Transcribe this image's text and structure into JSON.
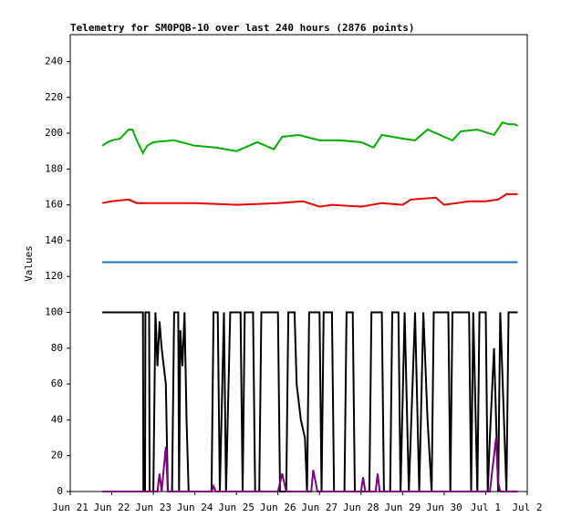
{
  "chart_data": {
    "type": "line",
    "title": "Telemetry for SM0PQB-10 over last 240 hours (2876 points)",
    "ylabel": "Values",
    "xlim": [
      0,
      11
    ],
    "ylim": [
      0,
      255
    ],
    "xticks": [
      {
        "value": 0,
        "label": "Jun 21"
      },
      {
        "value": 1,
        "label": "Jun 22"
      },
      {
        "value": 2,
        "label": "Jun 23"
      },
      {
        "value": 3,
        "label": "Jun 24"
      },
      {
        "value": 4,
        "label": "Jun 25"
      },
      {
        "value": 5,
        "label": "Jun 26"
      },
      {
        "value": 6,
        "label": "Jun 27"
      },
      {
        "value": 7,
        "label": "Jun 28"
      },
      {
        "value": 8,
        "label": "Jun 29"
      },
      {
        "value": 9,
        "label": "Jun 30"
      },
      {
        "value": 10,
        "label": "Jul 1"
      },
      {
        "value": 11,
        "label": "Jul 2"
      }
    ],
    "yticks": [
      0,
      20,
      40,
      60,
      80,
      100,
      120,
      140,
      160,
      180,
      200,
      220,
      240
    ],
    "series": [
      {
        "color": "#00b000",
        "x": [
          0.77,
          0.9,
          1.0,
          1.2,
          1.4,
          1.5,
          1.6,
          1.75,
          1.85,
          2.0,
          2.5,
          3.0,
          3.5,
          4.0,
          4.5,
          4.9,
          5.1,
          5.5,
          6.0,
          6.5,
          7.0,
          7.3,
          7.5,
          8.0,
          8.3,
          8.6,
          9.0,
          9.2,
          9.4,
          9.8,
          10.2,
          10.4,
          10.55,
          10.7,
          10.77
        ],
        "values": [
          193,
          195,
          196,
          197,
          202,
          202,
          196,
          189,
          193,
          195,
          196,
          193,
          192,
          190,
          195,
          191,
          198,
          199,
          196,
          196,
          195,
          192,
          199,
          197,
          196,
          202,
          198,
          196,
          201,
          202,
          199,
          206,
          205,
          205,
          204
        ]
      },
      {
        "color": "#ee0000",
        "x": [
          0.77,
          1.0,
          1.4,
          1.6,
          2.0,
          3.0,
          4.0,
          5.0,
          5.6,
          6.0,
          6.3,
          7.0,
          7.5,
          8.0,
          8.2,
          8.8,
          9.0,
          9.3,
          9.6,
          10.0,
          10.3,
          10.5,
          10.77
        ],
        "values": [
          161,
          162,
          163,
          161,
          161,
          161,
          160,
          161,
          162,
          159,
          160,
          159,
          161,
          160,
          163,
          164,
          160,
          161,
          162,
          162,
          163,
          166,
          166
        ]
      },
      {
        "color": "#1f6fb4",
        "x": [
          0.77,
          10.77
        ],
        "values": [
          128,
          128
        ]
      },
      {
        "color": "#000000",
        "x": [
          0.77,
          1.75,
          1.76,
          1.8,
          1.81,
          1.9,
          1.91,
          2.0,
          2.05,
          2.1,
          2.15,
          2.2,
          2.3,
          2.35,
          2.45,
          2.5,
          2.6,
          2.62,
          2.65,
          2.7,
          2.75,
          2.8,
          2.85,
          3.4,
          3.45,
          3.55,
          3.6,
          3.7,
          3.75,
          3.85,
          4.1,
          4.15,
          4.2,
          4.4,
          4.45,
          4.55,
          4.6,
          5.0,
          5.05,
          5.2,
          5.25,
          5.4,
          5.45,
          5.55,
          5.65,
          5.7,
          5.75,
          6.0,
          6.05,
          6.1,
          6.3,
          6.35,
          6.6,
          6.65,
          6.8,
          6.85,
          7.2,
          7.25,
          7.5,
          7.55,
          7.7,
          7.75,
          7.9,
          7.95,
          8.05,
          8.15,
          8.3,
          8.4,
          8.5,
          8.6,
          8.7,
          8.75,
          9.1,
          9.15,
          9.2,
          9.6,
          9.65,
          9.7,
          9.8,
          9.85,
          10.0,
          10.05,
          10.1,
          10.2,
          10.3,
          10.35,
          10.5,
          10.55,
          10.77
        ],
        "values": [
          100,
          100,
          0,
          0,
          100,
          100,
          0,
          0,
          100,
          70,
          95,
          80,
          60,
          0,
          0,
          100,
          100,
          0,
          90,
          70,
          100,
          40,
          0,
          0,
          100,
          100,
          0,
          100,
          0,
          100,
          100,
          0,
          100,
          100,
          0,
          0,
          100,
          100,
          0,
          0,
          100,
          100,
          60,
          40,
          30,
          0,
          100,
          100,
          0,
          100,
          100,
          0,
          0,
          100,
          100,
          0,
          0,
          100,
          100,
          0,
          0,
          100,
          100,
          0,
          100,
          0,
          100,
          0,
          100,
          40,
          0,
          100,
          100,
          0,
          100,
          100,
          0,
          100,
          0,
          100,
          100,
          0,
          30,
          80,
          0,
          100,
          0,
          100,
          100
        ]
      },
      {
        "color": "#800080",
        "x": [
          0.77,
          2.1,
          2.15,
          2.2,
          2.3,
          2.35,
          3.4,
          3.45,
          3.5,
          5.0,
          5.1,
          5.15,
          5.2,
          5.8,
          5.85,
          5.9,
          5.95,
          7.0,
          7.05,
          7.1,
          7.35,
          7.4,
          7.45,
          10.1,
          10.2,
          10.25,
          10.3,
          10.35,
          10.77
        ],
        "values": [
          0,
          0,
          10,
          0,
          25,
          0,
          0,
          3,
          0,
          0,
          10,
          5,
          0,
          0,
          12,
          6,
          0,
          0,
          8,
          0,
          0,
          10,
          0,
          0,
          20,
          30,
          5,
          0,
          0
        ]
      }
    ]
  }
}
